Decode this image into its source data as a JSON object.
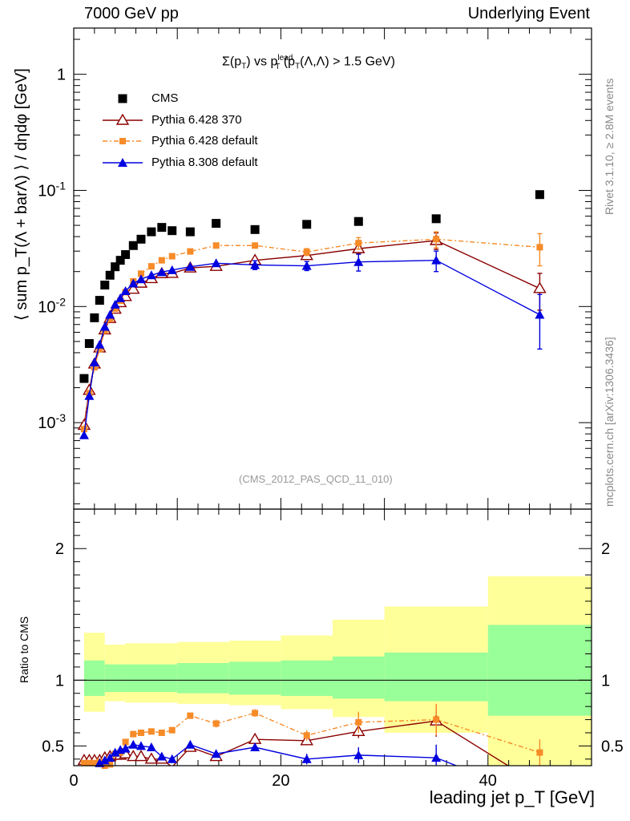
{
  "header": {
    "left": "7000 GeV pp",
    "right": "Underlying Event"
  },
  "side": {
    "rivet": "Rivet 3.1.10, ≥ 2.8M events",
    "mcplots": "mcplots.cern.ch [arXiv:1306.3436]"
  },
  "colors": {
    "cms": "#000000",
    "p370": "#8b0000",
    "pdef": "#f68b28",
    "p8": "#0000e0",
    "band_inner": "#99ff99",
    "band_outer": "#ffff99"
  },
  "chart_data": {
    "type": "scatter",
    "subtitle": {
      "sigma": "Σ(p",
      "sub_t1": "T",
      "vs": ") vs p",
      "sup_lead": "lead",
      "sub_t2": "T",
      "tail": "(p",
      "sub_t3": "T",
      "tail2": "(Λ,Λ) > 1.5 GeV)"
    },
    "ref_code": "(CMS_2012_PAS_QCD_11_010)",
    "ylabel_top": "⟨ sum p_T(Λ + barΛ) ⟩ / dηdφ [GeV]",
    "ylabel_bottom": "Ratio to CMS",
    "xlabel": "leading jet p_T [GeV]",
    "xlim": [
      0,
      50
    ],
    "ylim_top": [
      0.00018,
      2.5
    ],
    "ylim_bottom": [
      0.35,
      2.3
    ],
    "y_scale_top": "log",
    "top_tick_labels": [
      "1",
      "10^-1",
      "10^-2",
      "10^-3"
    ],
    "x_tick_labels": [
      "0",
      "20",
      "40"
    ],
    "bottom_tick_labels": [
      "2",
      "1",
      "0.5"
    ],
    "legend_position": "top-left",
    "series": [
      {
        "name": "CMS",
        "style": "square",
        "x": [
          1.0,
          1.5,
          2.0,
          2.5,
          3.0,
          3.5,
          4.0,
          4.5,
          5.0,
          5.75,
          6.5,
          7.5,
          8.5,
          9.5,
          11.25,
          13.75,
          17.5,
          22.5,
          27.5,
          35.0,
          45.0
        ],
        "y": [
          0.0024,
          0.0048,
          0.008,
          0.0113,
          0.0153,
          0.0186,
          0.022,
          0.025,
          0.028,
          0.0335,
          0.038,
          0.044,
          0.048,
          0.045,
          0.044,
          0.052,
          0.046,
          0.051,
          0.054,
          0.057,
          0.092
        ]
      },
      {
        "name": "Pythia 6.428 370",
        "style": "open-triangle",
        "x": [
          1.0,
          1.5,
          2.0,
          2.5,
          3.0,
          3.5,
          4.0,
          4.5,
          5.0,
          5.75,
          6.5,
          7.5,
          8.5,
          9.5,
          11.25,
          13.75,
          17.5,
          22.5,
          27.5,
          35.0,
          45.0
        ],
        "y": [
          0.00095,
          0.0019,
          0.0032,
          0.0044,
          0.0063,
          0.0079,
          0.0095,
          0.0108,
          0.0122,
          0.0141,
          0.0159,
          0.0174,
          0.0192,
          0.0193,
          0.0215,
          0.0222,
          0.025,
          0.0275,
          0.0315,
          0.037,
          0.0143
        ],
        "err": [
          0,
          0,
          0,
          0,
          0,
          0,
          0,
          0,
          0,
          0,
          0,
          0,
          0,
          0,
          0,
          0,
          0,
          0,
          0.003,
          0.006,
          0.005
        ],
        "ratio": [
          0.39,
          0.39,
          0.39,
          0.39,
          0.41,
          0.42,
          0.43,
          0.43,
          0.44,
          0.42,
          0.42,
          0.4,
          0.4,
          0.34,
          0.49,
          0.42,
          0.55,
          0.54,
          0.61,
          0.69,
          0.2
        ],
        "ratio_err": [
          0,
          0,
          0,
          0,
          0,
          0,
          0,
          0,
          0,
          0,
          0,
          0,
          0,
          0,
          0,
          0,
          0.02,
          0.03,
          0.05,
          0.12,
          0.08
        ]
      },
      {
        "name": "Pythia 6.428 default",
        "style": "filled-square-dashed",
        "x": [
          1.0,
          1.5,
          2.0,
          2.5,
          3.0,
          3.5,
          4.0,
          4.5,
          5.0,
          5.75,
          6.5,
          7.5,
          8.5,
          9.5,
          11.25,
          13.75,
          17.5,
          22.5,
          27.5,
          35.0,
          45.0
        ],
        "y": [
          0.00088,
          0.0018,
          0.003,
          0.0043,
          0.0062,
          0.0078,
          0.0096,
          0.0112,
          0.0133,
          0.0165,
          0.0192,
          0.0222,
          0.025,
          0.0271,
          0.0298,
          0.0335,
          0.0335,
          0.0295,
          0.0352,
          0.038,
          0.0324
        ],
        "err": [
          0,
          0,
          0,
          0,
          0,
          0,
          0,
          0,
          0,
          0,
          0,
          0,
          0,
          0,
          0,
          0,
          0,
          0.002,
          0.004,
          0.006,
          0.01
        ],
        "ratio": [
          0.37,
          0.37,
          0.37,
          0.38,
          0.35,
          0.36,
          0.44,
          0.45,
          0.53,
          0.59,
          0.6,
          0.61,
          0.6,
          0.62,
          0.73,
          0.67,
          0.75,
          0.58,
          0.68,
          0.7,
          0.45
        ],
        "ratio_err": [
          0,
          0,
          0,
          0,
          0,
          0,
          0,
          0,
          0,
          0,
          0,
          0,
          0,
          0.02,
          0.02,
          0.03,
          0.03,
          0.04,
          0.08,
          0.12,
          0.1
        ]
      },
      {
        "name": "Pythia 8.308 default",
        "style": "filled-triangle",
        "x": [
          1.0,
          1.5,
          2.0,
          2.5,
          3.0,
          3.5,
          4.0,
          4.5,
          5.0,
          5.75,
          6.5,
          7.5,
          8.5,
          9.5,
          11.25,
          13.75,
          17.5,
          22.5,
          27.5,
          35.0,
          45.0
        ],
        "y": [
          0.00078,
          0.0017,
          0.0033,
          0.0047,
          0.0067,
          0.0085,
          0.0104,
          0.0118,
          0.0136,
          0.0158,
          0.0172,
          0.0186,
          0.0198,
          0.0206,
          0.022,
          0.0236,
          0.0228,
          0.0224,
          0.0242,
          0.025,
          0.0085
        ],
        "err": [
          0,
          0,
          0,
          0,
          0,
          0,
          0,
          0,
          0,
          0,
          0,
          0,
          0,
          0,
          0,
          0,
          0.002,
          0.002,
          0.004,
          0.005,
          0.0042
        ],
        "ratio": [
          0.32,
          0.33,
          0.34,
          0.37,
          0.39,
          0.41,
          0.45,
          0.47,
          0.48,
          0.51,
          0.5,
          0.49,
          0.42,
          0.4,
          0.51,
          0.44,
          0.49,
          0.4,
          0.43,
          0.41,
          0.1
        ],
        "ratio_err": [
          0,
          0,
          0,
          0,
          0,
          0,
          0,
          0,
          0,
          0,
          0,
          0,
          0,
          0,
          0,
          0,
          0.03,
          0.04,
          0.06,
          0.1,
          0.05
        ]
      }
    ],
    "bands": {
      "x_edges": [
        1.0,
        3.0,
        5.0,
        10.0,
        15.0,
        20.0,
        25.0,
        30.0,
        40.0,
        50.0
      ],
      "inner_lo": [
        0.88,
        0.91,
        0.91,
        0.9,
        0.89,
        0.88,
        0.86,
        0.84,
        0.73
      ],
      "inner_hi": [
        1.15,
        1.12,
        1.12,
        1.13,
        1.14,
        1.15,
        1.18,
        1.21,
        1.42
      ],
      "outer_lo": [
        0.76,
        0.84,
        0.83,
        0.82,
        0.81,
        0.78,
        0.72,
        0.6,
        0.0
      ],
      "outer_hi": [
        1.36,
        1.27,
        1.28,
        1.29,
        1.3,
        1.34,
        1.46,
        1.56,
        1.79
      ]
    }
  }
}
